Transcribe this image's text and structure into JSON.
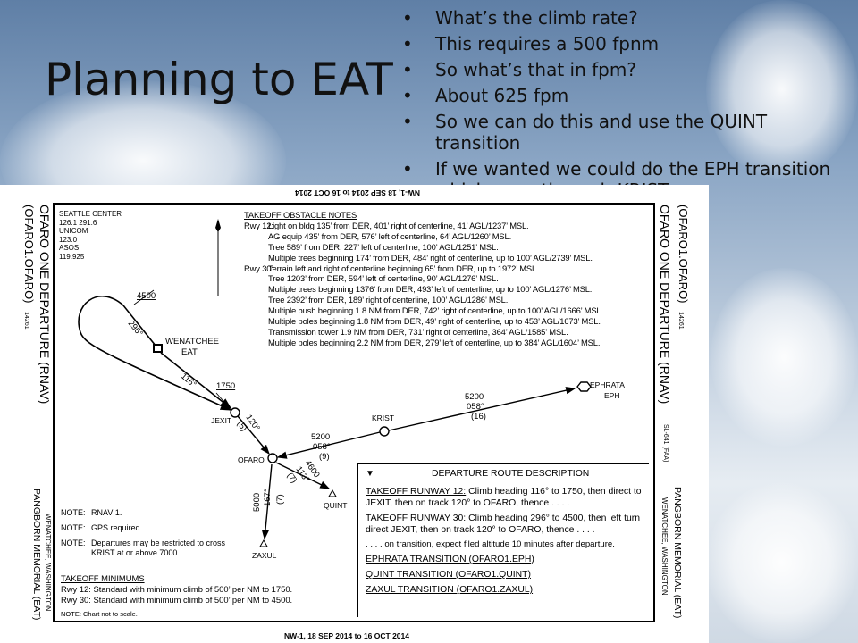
{
  "slide": {
    "title": "Planning to EAT",
    "bullets": [
      "What’s the climb rate?",
      "This requires a 500 fpnm",
      "So what’s that in fpm?",
      "About 625 fpm",
      "So we can do this and use the QUINT transition",
      "If we wanted we could do the EPH transition which goes through KRIST"
    ]
  },
  "chart": {
    "top_date_upside_down": "NW-1, 18 SEP 2014 to 16 OCT 2014",
    "bottom_date": "NW-1, 18 SEP 2014 to 16 OCT 2014",
    "left_margin": {
      "procedure_code": "(OFARO1.OFARO)",
      "amdt": "14261",
      "procedure_name": "OFARO ONE DEPARTURE (RNAV)",
      "airport": "PANGBORN MEMORIAL (EAT)",
      "city": "WENATCHEE, WASHINGTON"
    },
    "right_margin": {
      "procedure_code": "(OFARO1.OFARO)",
      "amdt": "14261",
      "procedure_name": "OFARO ONE DEPARTURE (RNAV)",
      "sl": "SL-641 (FAA)",
      "airport": "PANGBORN MEMORIAL (EAT)",
      "city": "WENATCHEE, WASHINGTON"
    },
    "comms": [
      "SEATTLE CENTER",
      "126.1  291.6",
      "UNICOM",
      "123.0",
      "ASOS",
      "119.925"
    ],
    "north": "N",
    "obstacle_notes": {
      "title": "TAKEOFF OBSTACLE NOTES",
      "rwy12_label": "Rwy 12:",
      "rwy12": [
        "Light on bldg 135’ from DER, 401’ right of centerline, 41’ AGL/1237’ MSL.",
        "AG equip 435’ from DER, 576’ left of centerline, 64’ AGL/1260’ MSL.",
        "Tree 589’ from DER, 227’ left of centerline, 100’ AGL/1251’ MSL.",
        "Multiple trees beginning 174’ from DER, 484’ right of centerline, up to 100’ AGL/2739’ MSL."
      ],
      "rwy30_label": "Rwy 30:",
      "rwy30": [
        "Terrain left and right of centerline beginning 65’ from DER, up to 1972’ MSL.",
        "Tree 1203’ from DER, 594’ left of centerline, 90’ AGL/1276’ MSL.",
        "Multiple trees beginning 1376’ from DER, 493’ left of centerline, up to 100’ AGL/1276’ MSL.",
        "Tree 2392’ from DER, 189’ right of centerline, 100’ AGL/1286’ MSL.",
        "Multiple bush beginning 1.8 NM from DER, 742’ right of centerline, up to 100’ AGL/1666’ MSL.",
        "Multiple poles beginning 1.8 NM from DER, 49’ right of centerline, up to 453’ AGL/1673’ MSL.",
        "Transmission tower 1.9 NM from DER, 731’ right of centerline, 364’ AGL/1585’ MSL.",
        "Multiple poles beginning 2.2 NM from DER, 279’ left of centerline, up to 384’ AGL/1604’ MSL."
      ]
    },
    "map": {
      "alt_4500": "4500",
      "hdg_296": "296°",
      "airport_name": "WENATCHEE",
      "airport_id": "EAT",
      "hdg_116": "116°",
      "alt_1750": "1750",
      "jexit": "JEXIT",
      "leg_jexit_ofaro": "120°",
      "dist_jexit_ofaro": "(5)",
      "ofaro": "OFARO",
      "leg_krist_alt": "5200",
      "leg_krist_hdg": "058°",
      "leg_krist_dist": "(9)",
      "krist": "KRIST",
      "leg_eph_alt": "5200",
      "leg_eph_hdg": "058°",
      "leg_eph_dist": "(16)",
      "ephrata": "EPHRATA",
      "eph": "EPH",
      "leg_quint_alt": "4600",
      "leg_quint_hdg": "113°",
      "leg_quint_dist": "(7)",
      "quint": "QUINT",
      "leg_zaxul_alt": "5000",
      "leg_zaxul_hdg": "167°",
      "leg_zaxul_dist": "(7)",
      "zaxul": "ZAXUL"
    },
    "notes": [
      {
        "label": "NOTE:",
        "text": "RNAV 1."
      },
      {
        "label": "NOTE:",
        "text": "GPS required."
      },
      {
        "label": "NOTE:",
        "text": "Departures may be restricted to cross KRIST at or above 7000."
      }
    ],
    "takeoff_minimums": {
      "title": "TAKEOFF MINIMUMS",
      "rwy12": "Rwy 12:  Standard with minimum climb of 500’ per NM to 1750.",
      "rwy30": "Rwy 30:  Standard with minimum climb of 500’ per NM to 4500."
    },
    "not_to_scale": "NOTE:  Chart not to scale.",
    "route_description": {
      "symbol": "▼",
      "title": "DEPARTURE ROUTE DESCRIPTION",
      "rwy12_label": "TAKEOFF RUNWAY 12:",
      "rwy12_text": " Climb heading 116° to 1750, then direct to JEXIT, then on track 120° to OFARO, thence . . . .",
      "rwy30_label": "TAKEOFF RUNWAY 30:",
      "rwy30_text": " Climb heading 296° to 4500, then left turn direct JEXIT, then on track 120° to OFARO, thence . . . .",
      "transition_note": ". . . . on transition, expect filed altitude 10 minutes after departure.",
      "transitions": [
        "EPHRATA TRANSITION (OFARO1.EPH)",
        "QUINT TRANSITION (OFARO1.QUINT)",
        "ZAXUL TRANSITION (OFARO1.ZAXUL)"
      ]
    }
  }
}
